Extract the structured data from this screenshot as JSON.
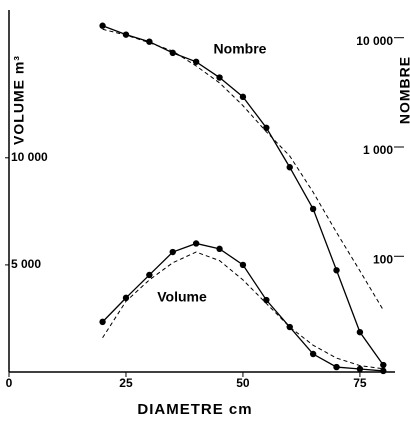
{
  "chart_data": {
    "type": "line",
    "x_label": "DIAMETRE      cm",
    "y_label": "VOLUME m³",
    "y2_label": "NOMBRE",
    "annotations": [
      "Nombre",
      "Volume"
    ],
    "x": [
      20,
      25,
      30,
      35,
      40,
      45,
      50,
      55,
      60,
      65,
      70,
      75,
      80
    ],
    "series": [
      {
        "name": "Volume",
        "color": "#000000",
        "markers": true,
        "values": [
          2340,
          3460,
          4530,
          5600,
          6000,
          5750,
          5000,
          3360,
          2100,
          840,
          230,
          140,
          50
        ]
      },
      {
        "color": "#000000",
        "dashed": true,
        "values": [
          1600,
          3300,
          4300,
          5100,
          5600,
          5200,
          4300,
          3200,
          2100,
          1250,
          650,
          300,
          150
        ]
      },
      {
        "name": "Nombre",
        "color": "#000000",
        "markers": true,
        "axis": "y2",
        "values": [
          14000,
          11600,
          10000,
          7900,
          6550,
          4700,
          3130,
          1630,
          710,
          295,
          81,
          22,
          11
        ]
      },
      {
        "color": "#000000",
        "dashed": true,
        "axis": "y2",
        "values": [
          13000,
          11500,
          9800,
          8200,
          6000,
          4200,
          2600,
          1500,
          900,
          420,
          180,
          80,
          35
        ]
      }
    ],
    "xlim": [
      0,
      82.5
    ],
    "xticks": [
      0,
      25,
      50,
      75
    ],
    "ylim": [
      0,
      16900
    ],
    "yticks": [
      {
        "value": 5000,
        "label": "5 000"
      },
      {
        "value": 10000,
        "label": "10 000"
      }
    ],
    "y2lim": [
      9.5,
      19500
    ],
    "y2log": true,
    "y2ticks": [
      {
        "value": 100,
        "label": "100"
      },
      {
        "value": 1000,
        "label": "1 000"
      },
      {
        "value": 10000,
        "label": "10 000"
      }
    ]
  }
}
